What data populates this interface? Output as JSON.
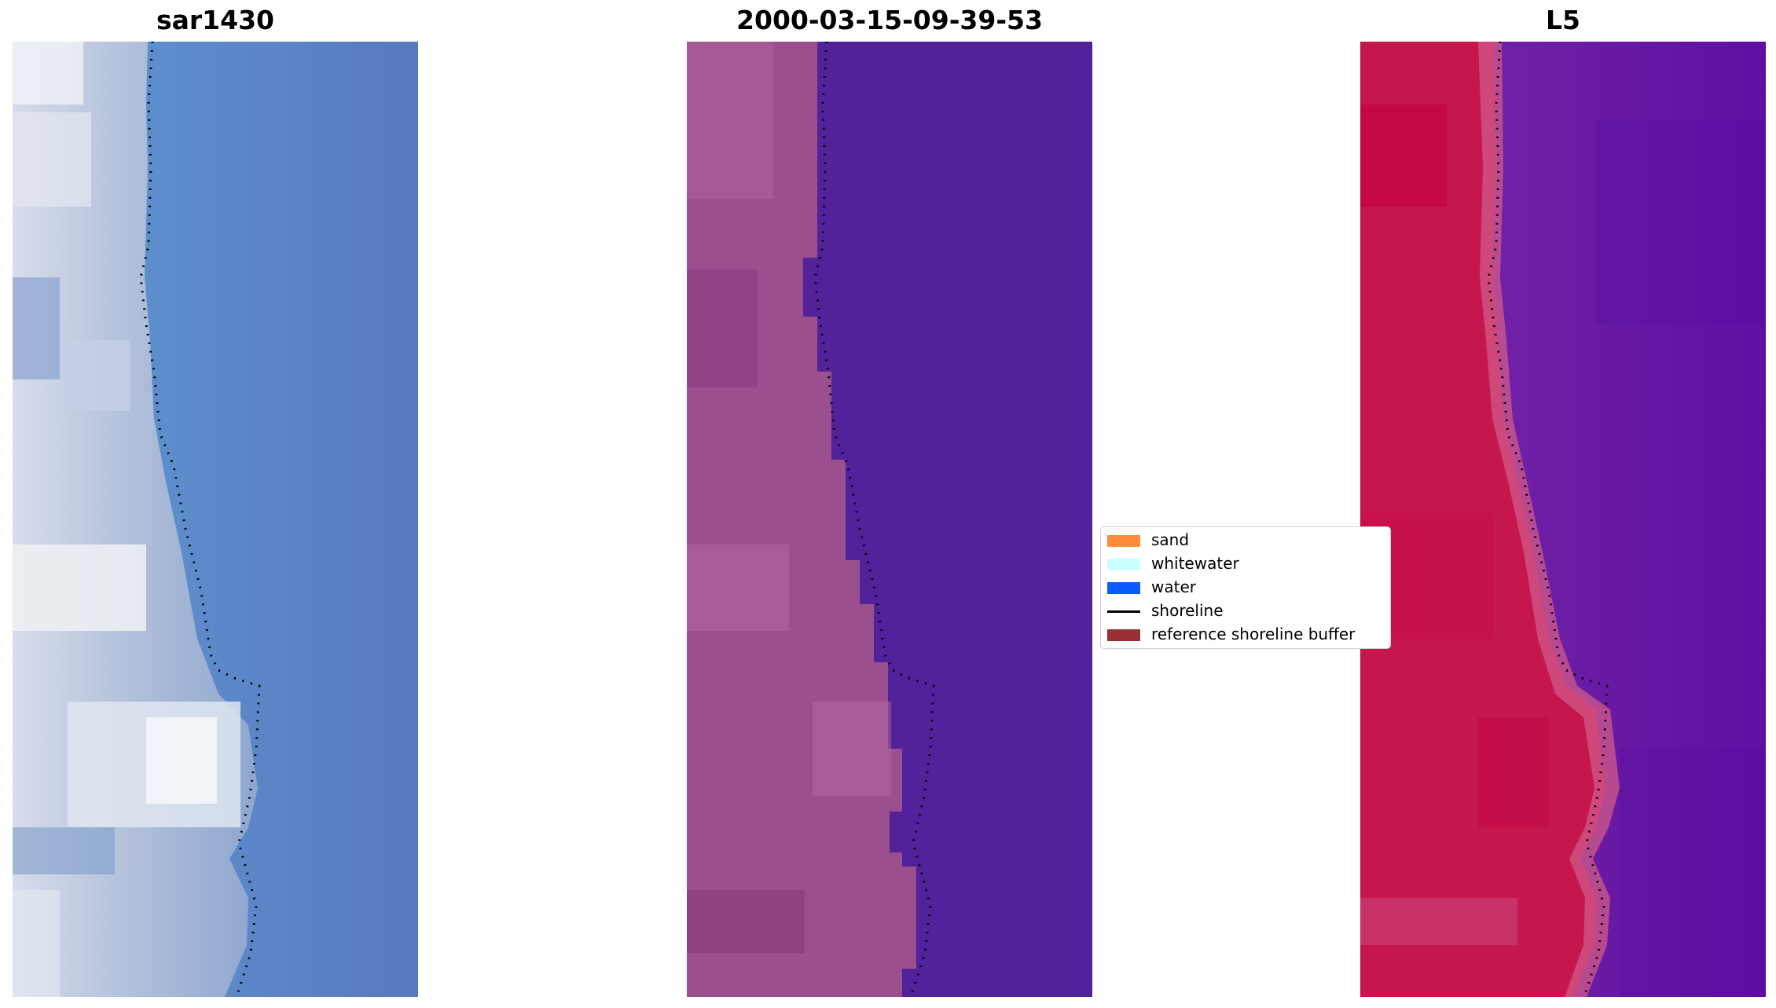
{
  "panels": [
    {
      "title": "sar1430",
      "kind": "rgb"
    },
    {
      "title": "2000-03-15-09-39-53",
      "kind": "classified"
    },
    {
      "title": "L5",
      "kind": "mndwi"
    }
  ],
  "legend": {
    "items": [
      {
        "label": "sand",
        "color": "#ff8c3a",
        "kind": "patch"
      },
      {
        "label": "whitewater",
        "color": "#ccffff",
        "kind": "patch"
      },
      {
        "label": "water",
        "color": "#0a5cff",
        "kind": "patch"
      },
      {
        "label": "shoreline",
        "color": "#000000",
        "kind": "line"
      },
      {
        "label": "reference shoreline buffer",
        "color": "#9b2f36",
        "kind": "patch"
      }
    ]
  },
  "colors": {
    "sea_rgb": "#5d88c8",
    "land_rgb": "#b8c8e0",
    "classified_land": "#9a4c8c",
    "classified_water": "#52229a",
    "mndwi_land": "#c2184a",
    "mndwi_water": "#6a1aa8"
  }
}
